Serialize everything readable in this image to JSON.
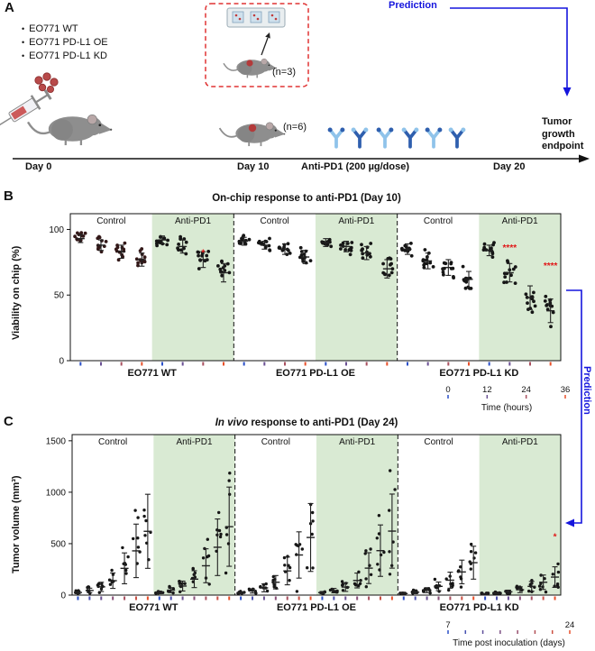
{
  "colors": {
    "arrow_blue": "#1515dd",
    "sig_red": "#e01818",
    "shade_green": "#d9ead3",
    "antibody_light": "#8fc3ea",
    "antibody_dark": "#2f5fae",
    "dashed_box_red": "#e03434"
  },
  "figure": {
    "panelA": {
      "label": "A",
      "cell_lines": [
        "EO771 WT",
        "EO771 PD-L1 OE",
        "EO771 PD-L1 KD"
      ],
      "chip_n": "(n=3)",
      "mouse_n": "(n=6)",
      "day0": "Day 0",
      "day10": "Day 10",
      "treatment": "Anti-PD1 (200 µg/dose)",
      "day20": "Day 20",
      "prediction": "Prediction",
      "endpoint_lines": [
        "Tumor",
        "growth",
        "endpoint"
      ]
    },
    "panelB": {
      "label": "B",
      "prediction": "Prediction"
    },
    "panelC": {
      "label": "C"
    }
  },
  "chart_data": [
    {
      "id": "B",
      "type": "scatter",
      "title": "On-chip response to anti-PD1 (Day 10)",
      "ylabel": "Viability on chip (%)",
      "yticks": [
        0,
        50,
        100
      ],
      "ylim": [
        0,
        112
      ],
      "groups": [
        "EO771 WT",
        "EO771 PD-L1 OE",
        "EO771 PD-L1 KD"
      ],
      "conditions": [
        "Control",
        "Anti-PD1"
      ],
      "points_per_column": 12,
      "legend": {
        "label": "Time (hours)",
        "ticks": [
          "0",
          "12",
          "24",
          "36"
        ],
        "color_start": "#2b50c8",
        "color_end": "#e8502a"
      },
      "sections": [
        {
          "group": "EO771 WT",
          "condition": "Control",
          "means": [
            93,
            88,
            83,
            77
          ],
          "sd": [
            3,
            4,
            5,
            5
          ],
          "dot_color": "#331818"
        },
        {
          "group": "EO771 WT",
          "condition": "Anti-PD1",
          "shaded": true,
          "means": [
            92,
            87,
            77,
            67
          ],
          "sd": [
            3,
            5,
            6,
            7
          ],
          "sig": [
            {
              "col": 2,
              "y": 80,
              "label": "*"
            }
          ]
        },
        {
          "group": "EO771 PD-L1 OE",
          "condition": "Control",
          "means": [
            91,
            88,
            85,
            79
          ],
          "sd": [
            3,
            3,
            4,
            5
          ]
        },
        {
          "group": "EO771 PD-L1 OE",
          "condition": "Anti-PD1",
          "shaded": true,
          "means": [
            90,
            87,
            82,
            70
          ],
          "sd": [
            3,
            4,
            5,
            7
          ]
        },
        {
          "group": "EO771 PD-L1 KD",
          "condition": "Control",
          "means": [
            85,
            76,
            71,
            62
          ],
          "sd": [
            4,
            6,
            6,
            6
          ]
        },
        {
          "group": "EO771 PD-L1 KD",
          "condition": "Anti-PD1",
          "shaded": true,
          "means": [
            84,
            67,
            48,
            38
          ],
          "sd": [
            4,
            7,
            9,
            9
          ],
          "sig": [
            {
              "col": 1,
              "y": 84,
              "label": "****"
            },
            {
              "col": 3,
              "y": 70,
              "label": "****"
            }
          ]
        }
      ]
    },
    {
      "id": "C",
      "type": "scatter",
      "title_italic": "In vivo",
      "title_rest": " response to anti-PD1 (Day 24)",
      "ylabel": "Tumor volume (mm³)",
      "yticks": [
        0,
        500,
        1000,
        1500
      ],
      "ylim": [
        0,
        1560
      ],
      "groups": [
        "EO771 WT",
        "EO771 PD-L1 OE",
        "EO771 PD-L1 KD"
      ],
      "conditions": [
        "Control",
        "Anti-PD1"
      ],
      "points_per_column": 7,
      "legend": {
        "label": "Time post inoculation (days)",
        "ticks": [
          "7",
          "24"
        ],
        "color_start": "#2b50c8",
        "color_end": "#e8502a"
      },
      "sections": [
        {
          "group": "EO771 WT",
          "condition": "Control",
          "means": [
            25,
            45,
            80,
            140,
            260,
            430,
            620
          ],
          "sd": [
            12,
            22,
            45,
            75,
            150,
            260,
            360
          ]
        },
        {
          "group": "EO771 WT",
          "condition": "Anti-PD1",
          "shaded": true,
          "means": [
            25,
            48,
            88,
            155,
            285,
            465,
            665
          ],
          "sd": [
            12,
            24,
            48,
            82,
            165,
            275,
            385
          ]
        },
        {
          "group": "EO771 PD-L1 OE",
          "condition": "Control",
          "means": [
            22,
            40,
            70,
            125,
            235,
            390,
            560
          ],
          "sd": [
            10,
            20,
            38,
            65,
            135,
            225,
            330
          ]
        },
        {
          "group": "EO771 PD-L1 OE",
          "condition": "Anti-PD1",
          "shaded": true,
          "means": [
            24,
            44,
            78,
            142,
            262,
            432,
            622
          ],
          "sd": [
            11,
            21,
            42,
            72,
            150,
            250,
            360
          ]
        },
        {
          "group": "EO771 PD-L1 KD",
          "condition": "Control",
          "means": [
            15,
            28,
            48,
            85,
            145,
            225,
            315
          ],
          "sd": [
            7,
            14,
            24,
            42,
            78,
            115,
            160
          ]
        },
        {
          "group": "EO771 PD-L1 KD",
          "condition": "Anti-PD1",
          "shaded": true,
          "means": [
            10,
            18,
            32,
            52,
            85,
            125,
            175
          ],
          "sd": [
            5,
            9,
            16,
            28,
            48,
            70,
            100
          ],
          "sig": [
            {
              "col": 6,
              "y": 540,
              "label": "*"
            }
          ]
        }
      ]
    }
  ]
}
